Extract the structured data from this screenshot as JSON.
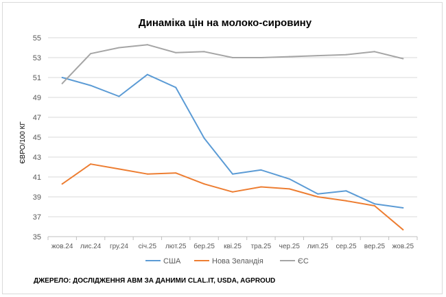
{
  "chart_data": {
    "type": "line",
    "title": "Динаміка цін на молоко-сировину",
    "xlabel": "",
    "ylabel": "ЄВРО/100 КГ",
    "categories": [
      "жов.24",
      "лис.24",
      "гру.24",
      "січ.25",
      "лют.25",
      "бер.25",
      "кві.25",
      "тра.25",
      "чер.25",
      "лип.25",
      "сер.25",
      "вер.25",
      "жов.25"
    ],
    "ylim": [
      35,
      55
    ],
    "yticks": [
      35,
      37,
      39,
      41,
      43,
      45,
      47,
      49,
      51,
      53,
      55
    ],
    "grid": "horizontal",
    "legend_position": "bottom",
    "series": [
      {
        "name": "США",
        "color": "#5b9bd5",
        "values": [
          51.0,
          50.2,
          49.1,
          51.3,
          50.0,
          44.9,
          41.3,
          41.7,
          40.8,
          39.3,
          39.6,
          38.3,
          37.9
        ]
      },
      {
        "name": "Нова Зеландія",
        "color": "#ed7d31",
        "values": [
          40.3,
          42.3,
          41.8,
          41.3,
          41.4,
          40.3,
          39.5,
          40.0,
          39.8,
          39.0,
          38.6,
          38.1,
          35.7
        ]
      },
      {
        "name": "ЄС",
        "color": "#a5a5a5",
        "values": [
          50.4,
          53.4,
          54.0,
          54.3,
          53.5,
          53.6,
          53.0,
          53.0,
          53.1,
          53.2,
          53.3,
          53.6,
          52.9
        ]
      }
    ],
    "source": "ДЖЕРЕЛО: ДОСЛІДЖЕННЯ АВМ ЗА ДАНИМИ CLAL.IT, USDA, AGPROUD"
  }
}
